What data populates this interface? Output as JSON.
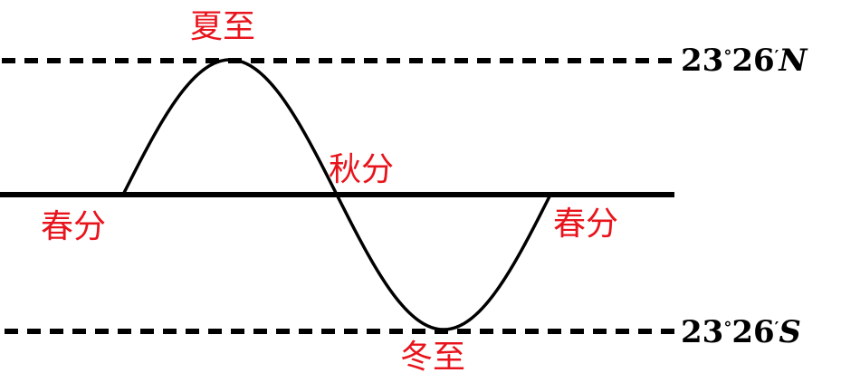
{
  "colors": {
    "line": "#000000",
    "label": "#e8141c"
  },
  "labels": {
    "summer_solstice": "夏至",
    "autumn_equinox": "秋分",
    "spring_equinox_left": "春分",
    "spring_equinox_right": "春分",
    "winter_solstice": "冬至"
  },
  "latitudes": {
    "north": {
      "degrees": "23",
      "degree_symbol": "°",
      "minutes": "26",
      "minute_symbol": "′",
      "hemisphere": "N"
    },
    "south": {
      "degrees": "23",
      "degree_symbol": "°",
      "minutes": "26",
      "minute_symbol": "′",
      "hemisphere": "S"
    }
  }
}
